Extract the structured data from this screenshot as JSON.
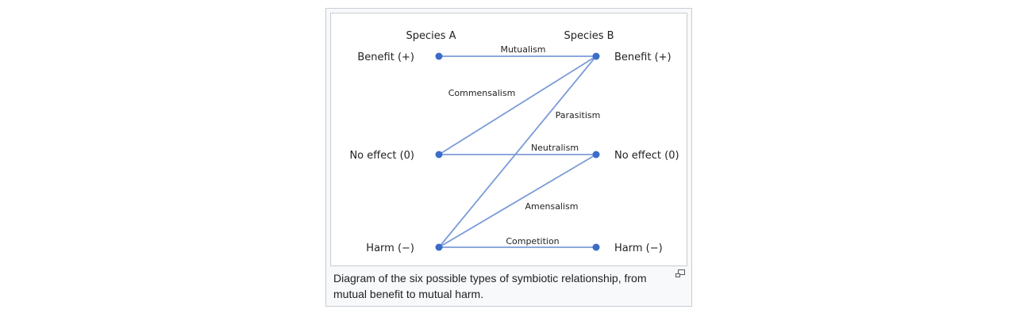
{
  "figure": {
    "caption": "Diagram of the six possible types of symbiotic relationship, from mutual benefit to mutual harm.",
    "enlarge_icon": "magnify-clip-icon"
  },
  "diagram": {
    "species_a": "Species A",
    "species_b": "Species B",
    "rows": [
      {
        "id": "benefit",
        "left": "Benefit (+)",
        "right": "Benefit (+)"
      },
      {
        "id": "none",
        "left": "No effect (0)",
        "right": "No effect (0)"
      },
      {
        "id": "harm",
        "left": "Harm (−)",
        "right": "Harm (−)"
      }
    ],
    "relationships": [
      {
        "name": "Mutualism",
        "from": "benefit",
        "to": "benefit"
      },
      {
        "name": "Commensalism",
        "from": "none",
        "to": "benefit"
      },
      {
        "name": "Parasitism",
        "from": "harm",
        "to": "benefit"
      },
      {
        "name": "Neutralism",
        "from": "none",
        "to": "none"
      },
      {
        "name": "Amensalism",
        "from": "harm",
        "to": "none"
      },
      {
        "name": "Competition",
        "from": "harm",
        "to": "harm"
      }
    ],
    "line_color": "#7b9bd8",
    "node_color": "#3b6cc9"
  }
}
